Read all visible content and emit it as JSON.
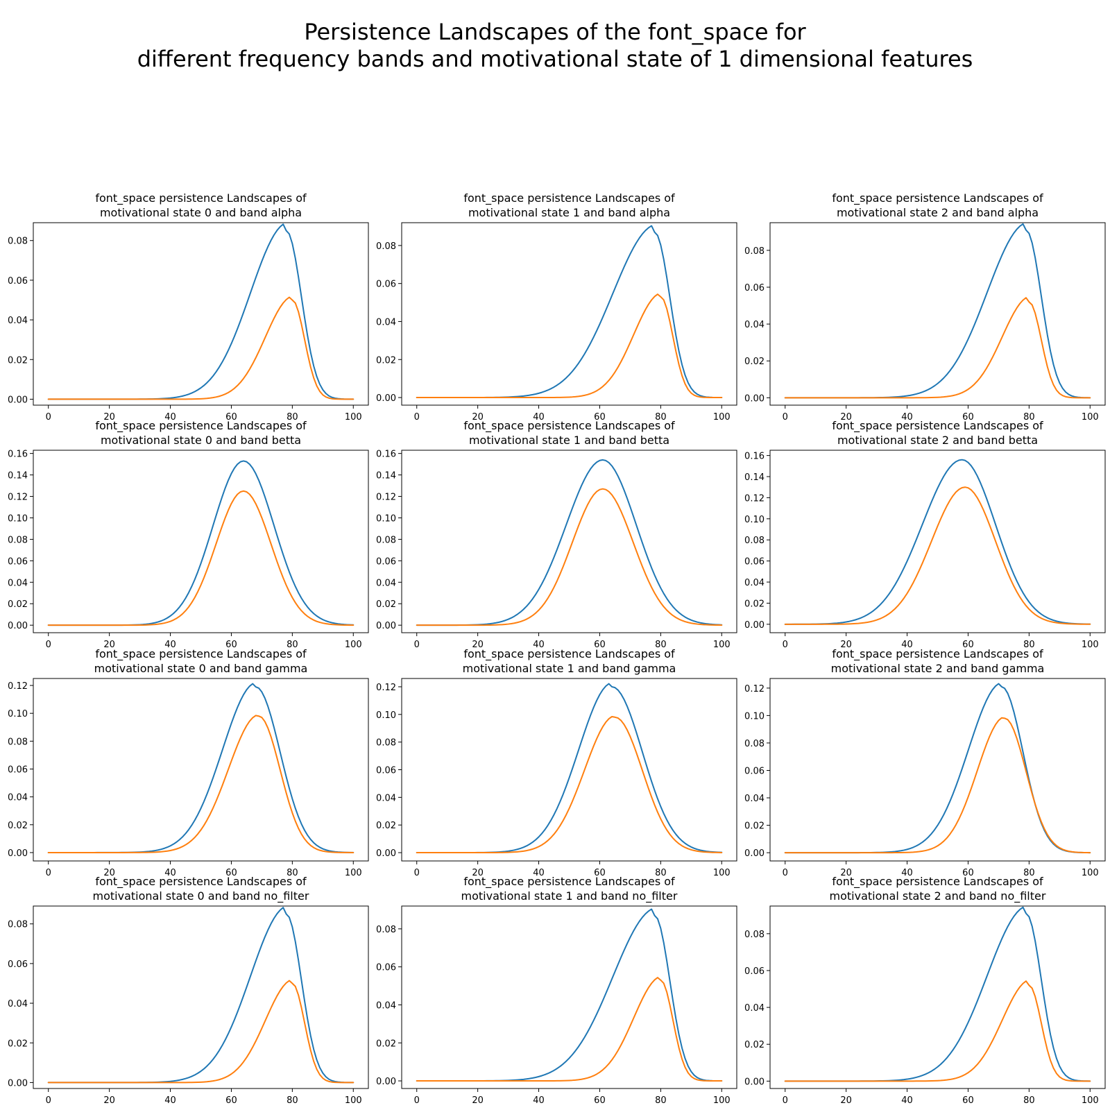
{
  "figure": {
    "title_line1": "Persistence Landscapes of the font_space for",
    "title_line2": "different frequency bands and motivational state of 1 dimensional features"
  },
  "colors": {
    "series1": "#1f77b4",
    "series2": "#ff7f0e"
  },
  "chart_data": [
    {
      "type": "line",
      "title_line1": "font_space persistence Landscapes of",
      "title_line2": "motivational state 0 and band alpha",
      "xlim": [
        0,
        100
      ],
      "ylim": [
        -0.003,
        0.089
      ],
      "x_ticks": [
        0,
        20,
        40,
        60,
        80,
        100
      ],
      "y_ticks": [
        0.0,
        0.02,
        0.04,
        0.06,
        0.08
      ],
      "y_tick_labels": [
        "0.00",
        "0.02",
        "0.04",
        "0.06",
        "0.08"
      ],
      "series": [
        {
          "color": "#1f77b4",
          "peak_x": 78,
          "peak_y": 0.085,
          "width_left": 12,
          "width_right": 5,
          "tail_amp": 0.004,
          "tail_decay": 8
        },
        {
          "color": "#ff7f0e",
          "peak_x": 80,
          "peak_y": 0.05,
          "width_left": 9,
          "width_right": 4,
          "tail_amp": 0.002,
          "tail_decay": 6
        }
      ]
    },
    {
      "type": "line",
      "title_line1": "font_space persistence Landscapes of",
      "title_line2": "motivational state 1 and band alpha",
      "xlim": [
        0,
        100
      ],
      "ylim": [
        -0.004,
        0.092
      ],
      "x_ticks": [
        0,
        20,
        40,
        60,
        80,
        100
      ],
      "y_ticks": [
        0.0,
        0.02,
        0.04,
        0.06,
        0.08
      ],
      "y_tick_labels": [
        "0.00",
        "0.02",
        "0.04",
        "0.06",
        "0.08"
      ],
      "series": [
        {
          "color": "#1f77b4",
          "peak_x": 78,
          "peak_y": 0.087,
          "width_left": 14,
          "width_right": 5,
          "tail_amp": 0.004,
          "tail_decay": 9
        },
        {
          "color": "#ff7f0e",
          "peak_x": 80,
          "peak_y": 0.053,
          "width_left": 9,
          "width_right": 4,
          "tail_amp": 0.002,
          "tail_decay": 6
        }
      ]
    },
    {
      "type": "line",
      "title_line1": "font_space persistence Landscapes of",
      "title_line2": "motivational state 2 and band alpha",
      "xlim": [
        0,
        100
      ],
      "ylim": [
        -0.004,
        0.095
      ],
      "x_ticks": [
        0,
        20,
        40,
        60,
        80,
        100
      ],
      "y_ticks": [
        0.0,
        0.02,
        0.04,
        0.06,
        0.08
      ],
      "y_tick_labels": [
        "0.00",
        "0.02",
        "0.04",
        "0.06",
        "0.08"
      ],
      "series": [
        {
          "color": "#1f77b4",
          "peak_x": 79,
          "peak_y": 0.091,
          "width_left": 13,
          "width_right": 5,
          "tail_amp": 0.004,
          "tail_decay": 9
        },
        {
          "color": "#ff7f0e",
          "peak_x": 80,
          "peak_y": 0.052,
          "width_left": 9,
          "width_right": 4,
          "tail_amp": 0.003,
          "tail_decay": 7
        }
      ]
    },
    {
      "type": "line",
      "title_line1": "font_space persistence Landscapes of",
      "title_line2": "motivational state 0 and band betta",
      "xlim": [
        0,
        100
      ],
      "ylim": [
        -0.007,
        0.163
      ],
      "x_ticks": [
        0,
        20,
        40,
        60,
        80,
        100
      ],
      "y_ticks": [
        0.0,
        0.02,
        0.04,
        0.06,
        0.08,
        0.1,
        0.12,
        0.14,
        0.16
      ],
      "y_tick_labels": [
        "0.00",
        "0.02",
        "0.04",
        "0.06",
        "0.08",
        "0.10",
        "0.12",
        "0.14",
        "0.16"
      ],
      "series": [
        {
          "color": "#1f77b4",
          "peak_x": 64,
          "peak_y": 0.153,
          "width_left": 10,
          "width_right": 10,
          "tail_amp": 0.0,
          "tail_decay": 5
        },
        {
          "color": "#ff7f0e",
          "peak_x": 64,
          "peak_y": 0.125,
          "width_left": 9,
          "width_right": 9,
          "tail_amp": 0.0,
          "tail_decay": 5
        }
      ]
    },
    {
      "type": "line",
      "title_line1": "font_space persistence Landscapes of",
      "title_line2": "motivational state 1 and band betta",
      "xlim": [
        0,
        100
      ],
      "ylim": [
        -0.007,
        0.163
      ],
      "x_ticks": [
        0,
        20,
        40,
        60,
        80,
        100
      ],
      "y_ticks": [
        0.0,
        0.02,
        0.04,
        0.06,
        0.08,
        0.1,
        0.12,
        0.14,
        0.16
      ],
      "y_tick_labels": [
        "0.00",
        "0.02",
        "0.04",
        "0.06",
        "0.08",
        "0.10",
        "0.12",
        "0.14",
        "0.16"
      ],
      "series": [
        {
          "color": "#1f77b4",
          "peak_x": 61,
          "peak_y": 0.154,
          "width_left": 12,
          "width_right": 11,
          "tail_amp": 0.0,
          "tail_decay": 5
        },
        {
          "color": "#ff7f0e",
          "peak_x": 61,
          "peak_y": 0.127,
          "width_left": 10,
          "width_right": 10,
          "tail_amp": 0.0,
          "tail_decay": 5
        }
      ]
    },
    {
      "type": "line",
      "title_line1": "font_space persistence Landscapes of",
      "title_line2": "motivational state 2 and band betta",
      "xlim": [
        0,
        100
      ],
      "ylim": [
        -0.008,
        0.165
      ],
      "x_ticks": [
        0,
        20,
        40,
        60,
        80,
        100
      ],
      "y_ticks": [
        0.0,
        0.02,
        0.04,
        0.06,
        0.08,
        0.1,
        0.12,
        0.14,
        0.16
      ],
      "y_tick_labels": [
        "0.00",
        "0.02",
        "0.04",
        "0.06",
        "0.08",
        "0.10",
        "0.12",
        "0.14",
        "0.16"
      ],
      "series": [
        {
          "color": "#1f77b4",
          "peak_x": 58,
          "peak_y": 0.156,
          "width_left": 13,
          "width_right": 11,
          "tail_amp": 0.0,
          "tail_decay": 5
        },
        {
          "color": "#ff7f0e",
          "peak_x": 59,
          "peak_y": 0.13,
          "width_left": 11,
          "width_right": 10,
          "tail_amp": 0.0,
          "tail_decay": 5
        }
      ]
    },
    {
      "type": "line",
      "title_line1": "font_space persistence Landscapes of",
      "title_line2": "motivational state 0 and band gamma",
      "xlim": [
        0,
        100
      ],
      "ylim": [
        -0.006,
        0.125
      ],
      "x_ticks": [
        0,
        20,
        40,
        60,
        80,
        100
      ],
      "y_ticks": [
        0.0,
        0.02,
        0.04,
        0.06,
        0.08,
        0.1,
        0.12
      ],
      "y_tick_labels": [
        "0.00",
        "0.02",
        "0.04",
        "0.06",
        "0.08",
        "0.10",
        "0.12"
      ],
      "series": [
        {
          "color": "#1f77b4",
          "peak_x": 68,
          "peak_y": 0.119,
          "width_left": 11,
          "width_right": 8,
          "tail_amp": 0.003,
          "tail_decay": 10
        },
        {
          "color": "#ff7f0e",
          "peak_x": 69,
          "peak_y": 0.098,
          "width_left": 10,
          "width_right": 7,
          "tail_amp": 0.001,
          "tail_decay": 8
        }
      ]
    },
    {
      "type": "line",
      "title_line1": "font_space persistence Landscapes of",
      "title_line2": "motivational state 1 and band gamma",
      "xlim": [
        0,
        100
      ],
      "ylim": [
        -0.006,
        0.126
      ],
      "x_ticks": [
        0,
        20,
        40,
        60,
        80,
        100
      ],
      "y_ticks": [
        0.0,
        0.02,
        0.04,
        0.06,
        0.08,
        0.1,
        0.12
      ],
      "y_tick_labels": [
        "0.00",
        "0.02",
        "0.04",
        "0.06",
        "0.08",
        "0.10",
        "0.12"
      ],
      "series": [
        {
          "color": "#1f77b4",
          "peak_x": 64,
          "peak_y": 0.12,
          "width_left": 11,
          "width_right": 10,
          "tail_amp": 0.003,
          "tail_decay": 10
        },
        {
          "color": "#ff7f0e",
          "peak_x": 65,
          "peak_y": 0.098,
          "width_left": 10,
          "width_right": 9,
          "tail_amp": 0.001,
          "tail_decay": 8
        }
      ]
    },
    {
      "type": "line",
      "title_line1": "font_space persistence Landscapes of",
      "title_line2": "motivational state 2 and band gamma",
      "xlim": [
        0,
        100
      ],
      "ylim": [
        -0.006,
        0.127
      ],
      "x_ticks": [
        0,
        20,
        40,
        60,
        80,
        100
      ],
      "y_ticks": [
        0.0,
        0.02,
        0.04,
        0.06,
        0.08,
        0.1,
        0.12
      ],
      "y_tick_labels": [
        "0.00",
        "0.02",
        "0.04",
        "0.06",
        "0.08",
        "0.10",
        "0.12"
      ],
      "series": [
        {
          "color": "#1f77b4",
          "peak_x": 71,
          "peak_y": 0.121,
          "width_left": 11,
          "width_right": 7,
          "tail_amp": 0.003,
          "tail_decay": 10
        },
        {
          "color": "#ff7f0e",
          "peak_x": 72,
          "peak_y": 0.098,
          "width_left": 9,
          "width_right": 7,
          "tail_amp": 0.001,
          "tail_decay": 8
        }
      ]
    },
    {
      "type": "line",
      "title_line1": "font_space persistence Landscapes of",
      "title_line2": "motivational state 0 and band no_filter",
      "xlim": [
        0,
        100
      ],
      "ylim": [
        -0.003,
        0.089
      ],
      "x_ticks": [
        0,
        20,
        40,
        60,
        80,
        100
      ],
      "y_ticks": [
        0.0,
        0.02,
        0.04,
        0.06,
        0.08
      ],
      "y_tick_labels": [
        "0.00",
        "0.02",
        "0.04",
        "0.06",
        "0.08"
      ],
      "series": [
        {
          "color": "#1f77b4",
          "peak_x": 78,
          "peak_y": 0.085,
          "width_left": 12,
          "width_right": 5,
          "tail_amp": 0.004,
          "tail_decay": 8
        },
        {
          "color": "#ff7f0e",
          "peak_x": 80,
          "peak_y": 0.05,
          "width_left": 9,
          "width_right": 4,
          "tail_amp": 0.002,
          "tail_decay": 6
        }
      ]
    },
    {
      "type": "line",
      "title_line1": "font_space persistence Landscapes of",
      "title_line2": "motivational state 1 and band no_filter",
      "xlim": [
        0,
        100
      ],
      "ylim": [
        -0.004,
        0.092
      ],
      "x_ticks": [
        0,
        20,
        40,
        60,
        80,
        100
      ],
      "y_ticks": [
        0.0,
        0.02,
        0.04,
        0.06,
        0.08
      ],
      "y_tick_labels": [
        "0.00",
        "0.02",
        "0.04",
        "0.06",
        "0.08"
      ],
      "series": [
        {
          "color": "#1f77b4",
          "peak_x": 78,
          "peak_y": 0.087,
          "width_left": 14,
          "width_right": 5,
          "tail_amp": 0.004,
          "tail_decay": 9
        },
        {
          "color": "#ff7f0e",
          "peak_x": 80,
          "peak_y": 0.053,
          "width_left": 9,
          "width_right": 4,
          "tail_amp": 0.002,
          "tail_decay": 6
        }
      ]
    },
    {
      "type": "line",
      "title_line1": "font_space persistence Landscapes of",
      "title_line2": "motivational state 2 and band no_filter",
      "xlim": [
        0,
        100
      ],
      "ylim": [
        -0.004,
        0.095
      ],
      "x_ticks": [
        0,
        20,
        40,
        60,
        80,
        100
      ],
      "y_ticks": [
        0.0,
        0.02,
        0.04,
        0.06,
        0.08
      ],
      "y_tick_labels": [
        "0.00",
        "0.02",
        "0.04",
        "0.06",
        "0.08"
      ],
      "series": [
        {
          "color": "#1f77b4",
          "peak_x": 79,
          "peak_y": 0.091,
          "width_left": 13,
          "width_right": 5,
          "tail_amp": 0.004,
          "tail_decay": 9
        },
        {
          "color": "#ff7f0e",
          "peak_x": 80,
          "peak_y": 0.052,
          "width_left": 9,
          "width_right": 4,
          "tail_amp": 0.003,
          "tail_decay": 7
        }
      ]
    }
  ]
}
